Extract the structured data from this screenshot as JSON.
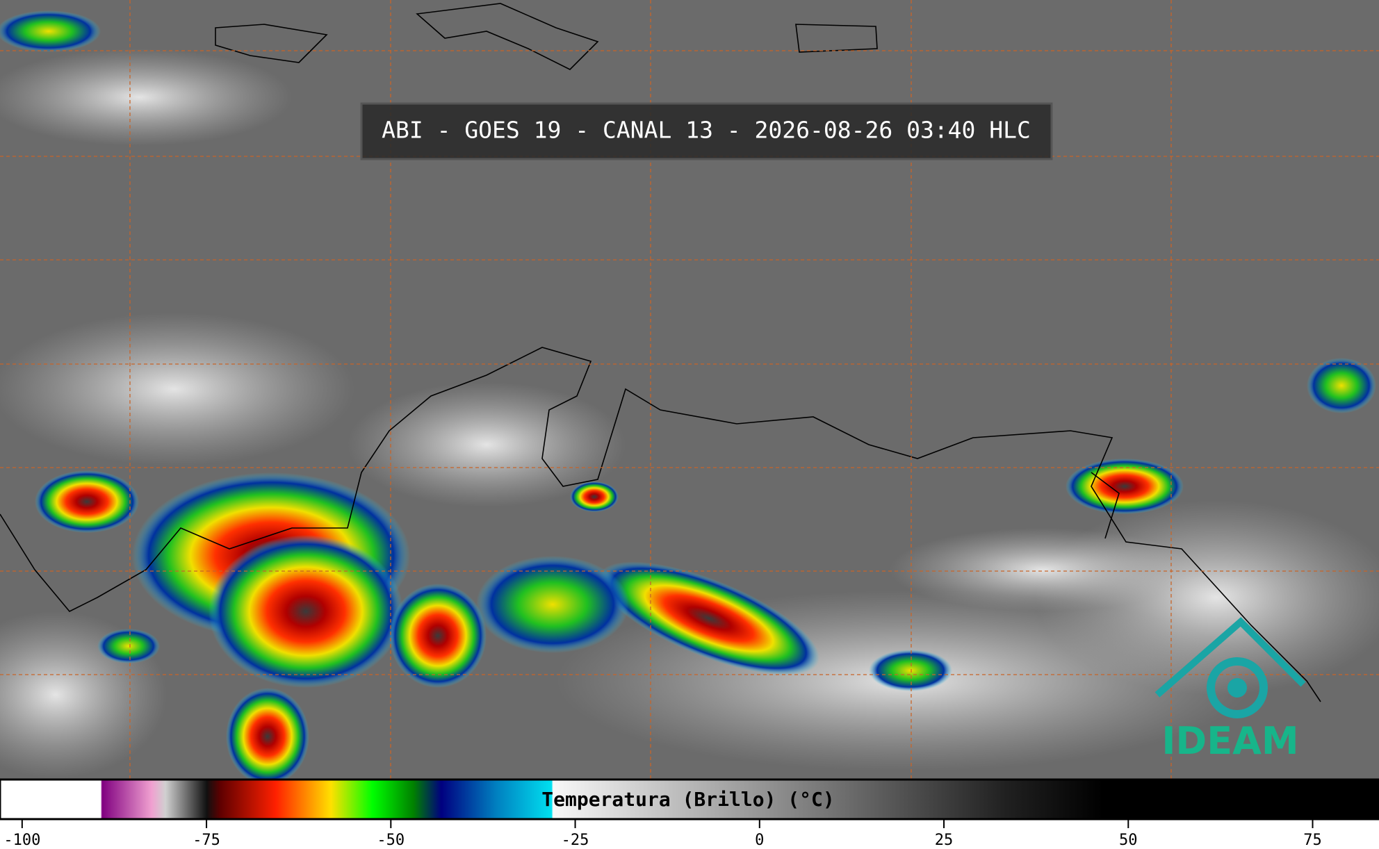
{
  "title": "ABI - GOES 19 - CANAL 13 - 2026-08-26 03:40 HLC",
  "colorbar": {
    "label": "Temperatura (Brillo) (°C)",
    "lim": [
      -103,
      84
    ],
    "ticks": [
      -100,
      -75,
      -50,
      -25,
      0,
      25,
      50,
      75
    ]
  },
  "logo": "IDEAM"
}
